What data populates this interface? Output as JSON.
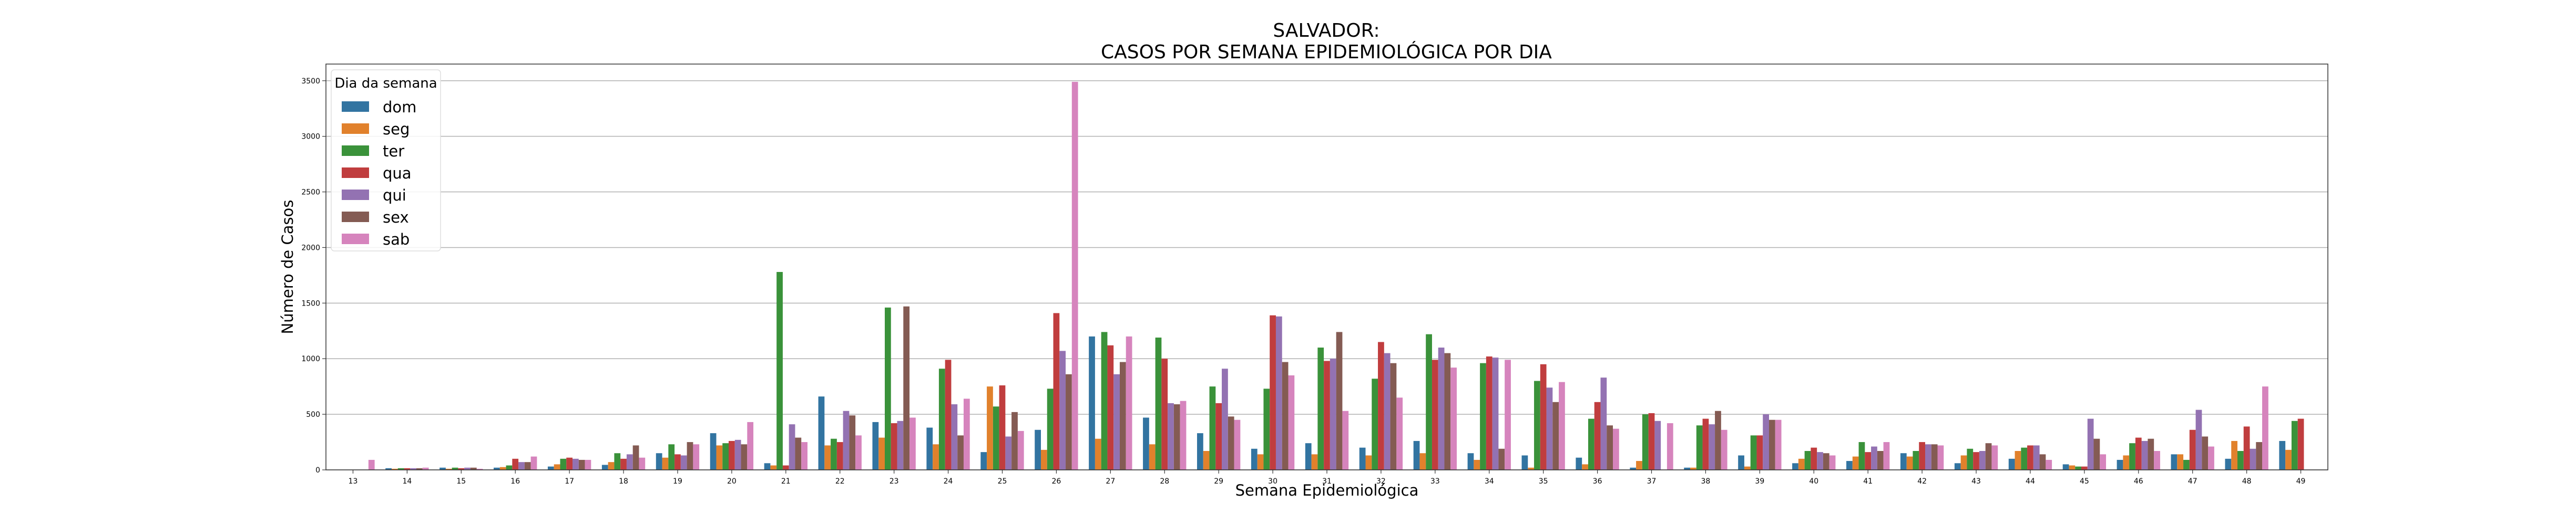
{
  "chart_data": {
    "type": "bar",
    "title": [
      "SALVADOR:",
      "CASOS POR SEMANA EPIDEMIOLÓGICA POR DIA"
    ],
    "xlabel": "Semana Epidemiológica",
    "ylabel": "Número de Casos",
    "ylim": [
      0,
      3650
    ],
    "yticks": [
      0,
      500,
      1000,
      1500,
      2000,
      2500,
      3000,
      3500
    ],
    "grid": "horizontal",
    "legend": {
      "title": "Dia da semana",
      "placement": "top-left"
    },
    "categories": [
      "13",
      "14",
      "15",
      "16",
      "17",
      "18",
      "19",
      "20",
      "21",
      "22",
      "23",
      "24",
      "25",
      "26",
      "27",
      "28",
      "29",
      "30",
      "31",
      "32",
      "33",
      "34",
      "35",
      "36",
      "37",
      "38",
      "39",
      "40",
      "41",
      "42",
      "43",
      "44",
      "45",
      "46",
      "47",
      "48",
      "49"
    ],
    "series": [
      {
        "name": "dom",
        "color": "#3274a1",
        "values": [
          0,
          15,
          20,
          20,
          30,
          45,
          150,
          330,
          60,
          660,
          430,
          380,
          160,
          360,
          1200,
          470,
          330,
          190,
          240,
          200,
          260,
          150,
          130,
          110,
          20,
          20,
          130,
          60,
          80,
          150,
          60,
          100,
          50,
          90,
          140,
          100,
          260
        ]
      },
      {
        "name": "seg",
        "color": "#e1812c",
        "values": [
          0,
          10,
          10,
          25,
          50,
          70,
          110,
          220,
          40,
          220,
          290,
          230,
          750,
          180,
          280,
          230,
          170,
          140,
          140,
          130,
          150,
          90,
          20,
          50,
          80,
          20,
          30,
          100,
          120,
          120,
          130,
          170,
          40,
          130,
          140,
          260,
          180
        ]
      },
      {
        "name": "ter",
        "color": "#3a923a",
        "values": [
          0,
          15,
          20,
          40,
          100,
          150,
          230,
          240,
          1780,
          280,
          1460,
          910,
          570,
          730,
          1240,
          1190,
          750,
          730,
          1100,
          820,
          1220,
          960,
          800,
          460,
          500,
          400,
          310,
          170,
          250,
          170,
          190,
          200,
          30,
          240,
          90,
          170,
          440
        ]
      },
      {
        "name": "qua",
        "color": "#c03d3e",
        "values": [
          0,
          15,
          15,
          100,
          110,
          100,
          140,
          260,
          40,
          250,
          420,
          990,
          760,
          1410,
          1120,
          1000,
          600,
          1390,
          980,
          1150,
          990,
          1020,
          950,
          610,
          510,
          460,
          310,
          200,
          160,
          250,
          160,
          220,
          30,
          290,
          360,
          390,
          460
        ]
      },
      {
        "name": "qui",
        "color": "#9372b2",
        "values": [
          0,
          15,
          20,
          70,
          100,
          140,
          130,
          270,
          410,
          530,
          440,
          590,
          300,
          1070,
          860,
          600,
          910,
          1380,
          1000,
          1050,
          1100,
          1010,
          740,
          830,
          440,
          410,
          500,
          160,
          210,
          230,
          170,
          220,
          460,
          260,
          540,
          190,
          0
        ]
      },
      {
        "name": "sex",
        "color": "#845b53",
        "values": [
          0,
          15,
          20,
          70,
          90,
          220,
          250,
          230,
          290,
          490,
          1470,
          310,
          520,
          860,
          970,
          590,
          480,
          970,
          1240,
          960,
          1050,
          190,
          610,
          400,
          0,
          530,
          450,
          150,
          170,
          230,
          240,
          140,
          280,
          280,
          300,
          250,
          0
        ]
      },
      {
        "name": "sab",
        "color": "#d684bd",
        "values": [
          90,
          20,
          10,
          120,
          90,
          110,
          230,
          430,
          250,
          310,
          470,
          640,
          350,
          3490,
          1200,
          620,
          450,
          850,
          530,
          650,
          920,
          990,
          790,
          370,
          420,
          360,
          450,
          130,
          250,
          220,
          220,
          90,
          140,
          170,
          210,
          750,
          0
        ]
      }
    ]
  }
}
